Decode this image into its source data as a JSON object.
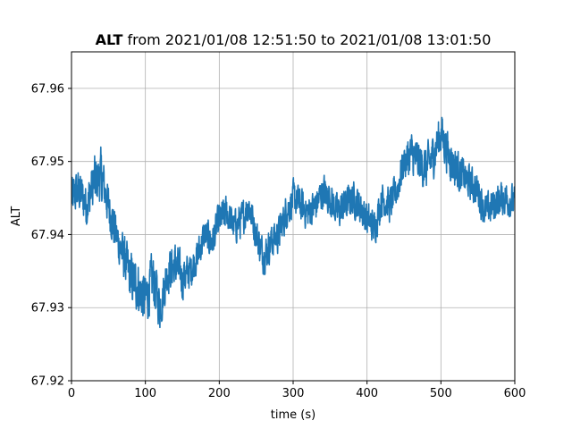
{
  "chart_data": {
    "type": "line",
    "title": {
      "bold": "ALT",
      "rest": " from 2021/01/08 12:51:50 to 2021/01/08 13:01:50"
    },
    "xlabel": "time (s)",
    "ylabel": "ALT",
    "xlim": [
      0,
      600
    ],
    "ylim": [
      67.92,
      67.965
    ],
    "xticks": [
      0,
      100,
      200,
      300,
      400,
      500,
      600
    ],
    "yticks": [
      67.92,
      67.93,
      67.94,
      67.95,
      67.96
    ],
    "xtick_labels": [
      "0",
      "100",
      "200",
      "300",
      "400",
      "500",
      "600"
    ],
    "ytick_labels": [
      "67.92",
      "67.93",
      "67.94",
      "67.95",
      "67.96"
    ],
    "grid": true,
    "line_color": "#1f77b4",
    "series": [
      {
        "x": [
          0,
          10,
          20,
          30,
          40,
          50,
          60,
          70,
          80,
          90,
          100,
          110,
          120,
          130,
          140,
          150,
          160,
          170,
          180,
          190,
          200,
          210,
          220,
          230,
          240,
          250,
          260,
          270,
          280,
          290,
          300,
          310,
          320,
          330,
          340,
          350,
          360,
          370,
          380,
          390,
          400,
          410,
          420,
          430,
          440,
          450,
          460,
          470,
          480,
          490,
          500,
          510,
          520,
          530,
          540,
          550,
          560,
          570,
          580,
          590,
          600
        ],
        "y": [
          67.945,
          67.946,
          67.944,
          67.947,
          67.948,
          67.944,
          67.94,
          67.937,
          67.934,
          67.933,
          67.931,
          67.934,
          67.93,
          67.935,
          67.936,
          67.934,
          67.935,
          67.937,
          67.94,
          67.939,
          67.942,
          67.943,
          67.941,
          67.942,
          67.944,
          67.94,
          67.937,
          67.939,
          67.94,
          67.943,
          67.945,
          67.944,
          67.943,
          67.944,
          67.946,
          67.945,
          67.943,
          67.944,
          67.945,
          67.944,
          67.942,
          67.941,
          67.945,
          67.944,
          67.946,
          67.95,
          67.951,
          67.95,
          67.949,
          67.951,
          67.954,
          67.951,
          67.949,
          67.948,
          67.947,
          67.946,
          67.943,
          67.944,
          67.945,
          67.945,
          67.944
        ],
        "amplitude": [
          0.005,
          0.005,
          0.005,
          0.006,
          0.006,
          0.005,
          0.005,
          0.005,
          0.006,
          0.006,
          0.006,
          0.006,
          0.005,
          0.005,
          0.005,
          0.005,
          0.004,
          0.004,
          0.004,
          0.004,
          0.004,
          0.004,
          0.004,
          0.004,
          0.004,
          0.004,
          0.004,
          0.004,
          0.004,
          0.004,
          0.004,
          0.004,
          0.004,
          0.004,
          0.004,
          0.004,
          0.004,
          0.004,
          0.004,
          0.004,
          0.004,
          0.004,
          0.004,
          0.004,
          0.004,
          0.004,
          0.005,
          0.005,
          0.005,
          0.005,
          0.005,
          0.005,
          0.005,
          0.004,
          0.004,
          0.004,
          0.004,
          0.004,
          0.004,
          0.004,
          0.004
        ]
      }
    ]
  }
}
